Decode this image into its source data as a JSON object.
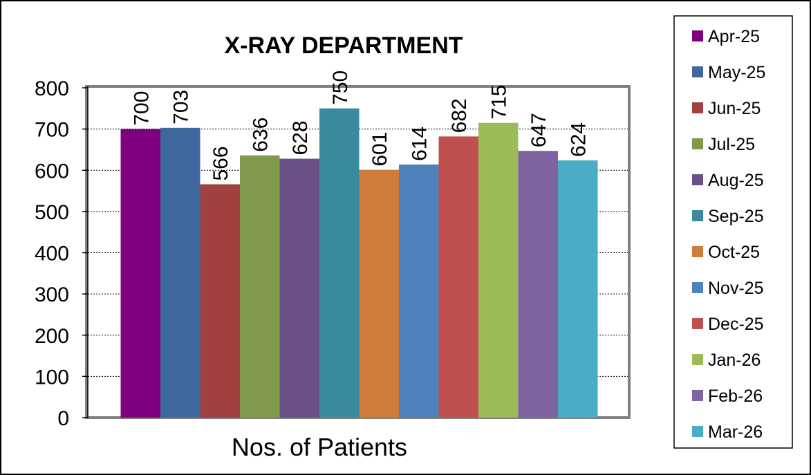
{
  "chart_data": {
    "type": "bar",
    "title": "X-RAY DEPARTMENT",
    "xlabel": "Nos. of Patients",
    "ylabel": "",
    "ylim": [
      0,
      800
    ],
    "yticks": [
      0,
      100,
      200,
      300,
      400,
      500,
      600,
      700,
      800
    ],
    "grid": true,
    "legend_position": "right",
    "categories": [
      "Nos. of Patients"
    ],
    "series": [
      {
        "name": "Apr-25",
        "value": 700,
        "color": "#7F007F"
      },
      {
        "name": "May-25",
        "value": 703,
        "color": "#3F689F"
      },
      {
        "name": "Jun-25",
        "value": 566,
        "color": "#A0403F"
      },
      {
        "name": "Jul-25",
        "value": 636,
        "color": "#7F9A4A"
      },
      {
        "name": "Aug-25",
        "value": 628,
        "color": "#6A5088"
      },
      {
        "name": "Sep-25",
        "value": 750,
        "color": "#3A8A9F"
      },
      {
        "name": "Oct-25",
        "value": 601,
        "color": "#CF7B3A"
      },
      {
        "name": "Nov-25",
        "value": 614,
        "color": "#4F81BD"
      },
      {
        "name": "Dec-25",
        "value": 682,
        "color": "#C0504D"
      },
      {
        "name": "Jan-26",
        "value": 715,
        "color": "#9BBB59"
      },
      {
        "name": "Feb-26",
        "value": 647,
        "color": "#8064A2"
      },
      {
        "name": "Mar-26",
        "value": 624,
        "color": "#4BACC6"
      }
    ]
  }
}
